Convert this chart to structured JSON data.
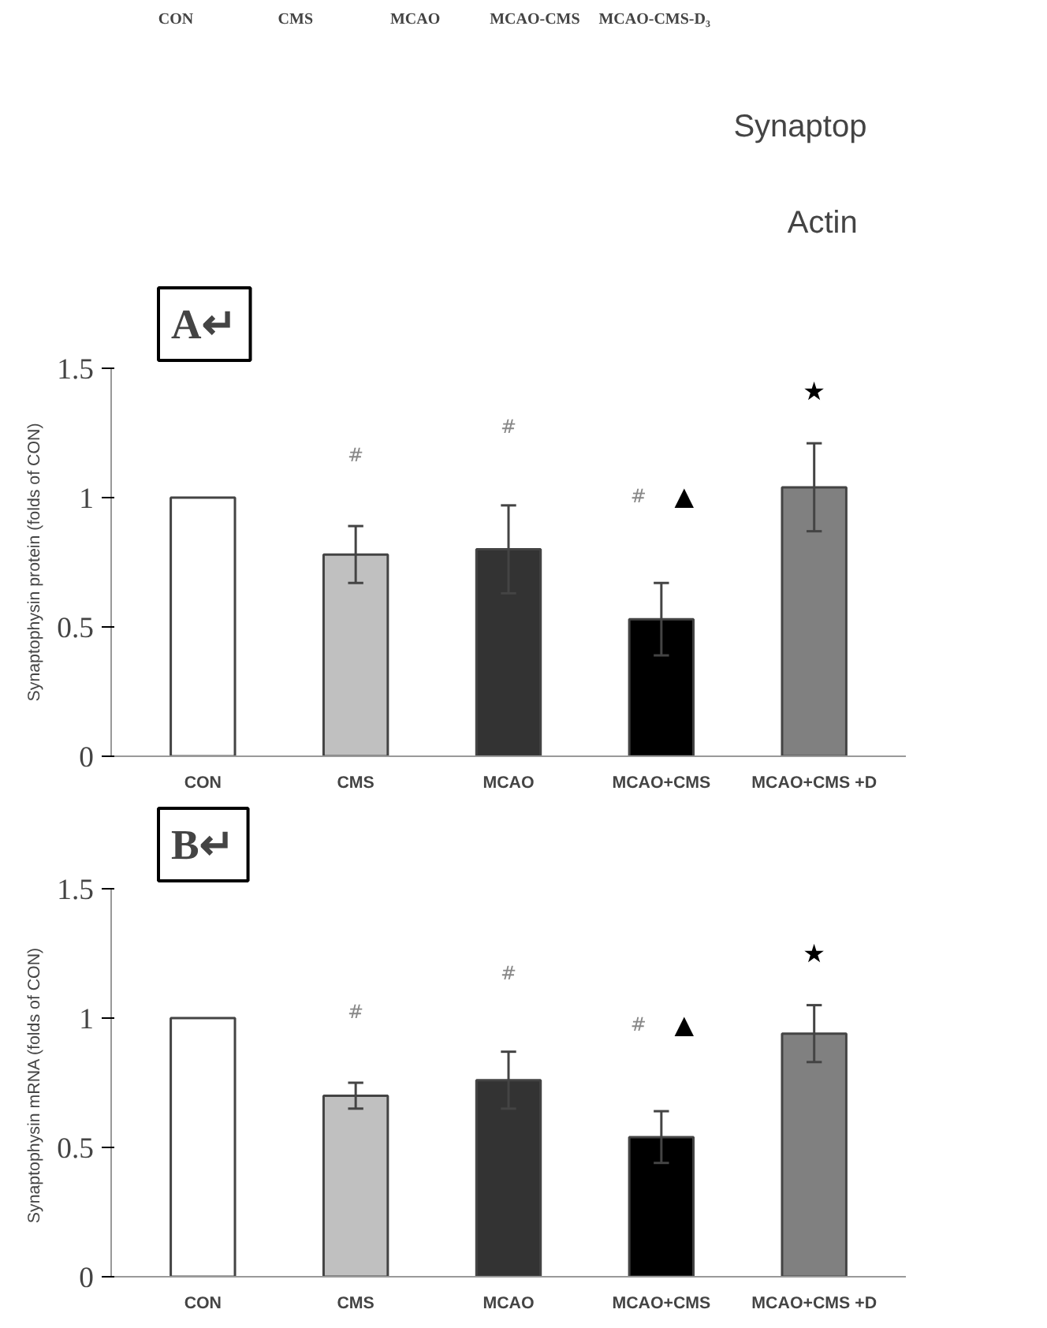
{
  "chart_data": [
    {
      "type": "other",
      "annotations": [
        "CON",
        "CMS",
        "MCAO",
        "MCAO-CMS",
        "MCAO-CMS-D₃",
        "Synaptop",
        "Actin"
      ]
    },
    {
      "type": "bar",
      "title": "A↵",
      "ylabel": "Synaptophysin protein (folds of CON)",
      "categories": [
        "CON",
        "CMS",
        "MCAO",
        "MCAO+CMS",
        "MCAO+CMS +D"
      ],
      "values": [
        1.0,
        0.78,
        0.8,
        0.53,
        1.04
      ],
      "colors": [
        "#ffffff",
        "#c0c0c0",
        "#333333",
        "#000000",
        "#808080"
      ],
      "errors": [
        null,
        0.11,
        0.17,
        0.14,
        0.17
      ],
      "ylim": [
        0,
        1.5
      ],
      "yticks": [
        0,
        0.5,
        1,
        1.5
      ],
      "grid": false,
      "annotations": [
        "#",
        "#",
        "#",
        "▲",
        "★"
      ]
    },
    {
      "type": "bar",
      "title": "B↵",
      "ylabel": "Synaptophysin  mRNA (folds of CON)",
      "categories": [
        "CON",
        "CMS",
        "MCAO",
        "MCAO+CMS",
        "MCAO+CMS +D"
      ],
      "values": [
        1.0,
        0.7,
        0.76,
        0.54,
        0.94
      ],
      "colors": [
        "#ffffff",
        "#c0c0c0",
        "#333333",
        "#000000",
        "#808080"
      ],
      "errors": [
        null,
        0.05,
        0.11,
        0.1,
        0.11
      ],
      "ylim": [
        0,
        1.5
      ],
      "yticks": [
        0,
        0.5,
        1,
        1.5
      ],
      "grid": false,
      "annotations": [
        "#",
        "#",
        "#",
        "▲",
        "★"
      ]
    }
  ]
}
